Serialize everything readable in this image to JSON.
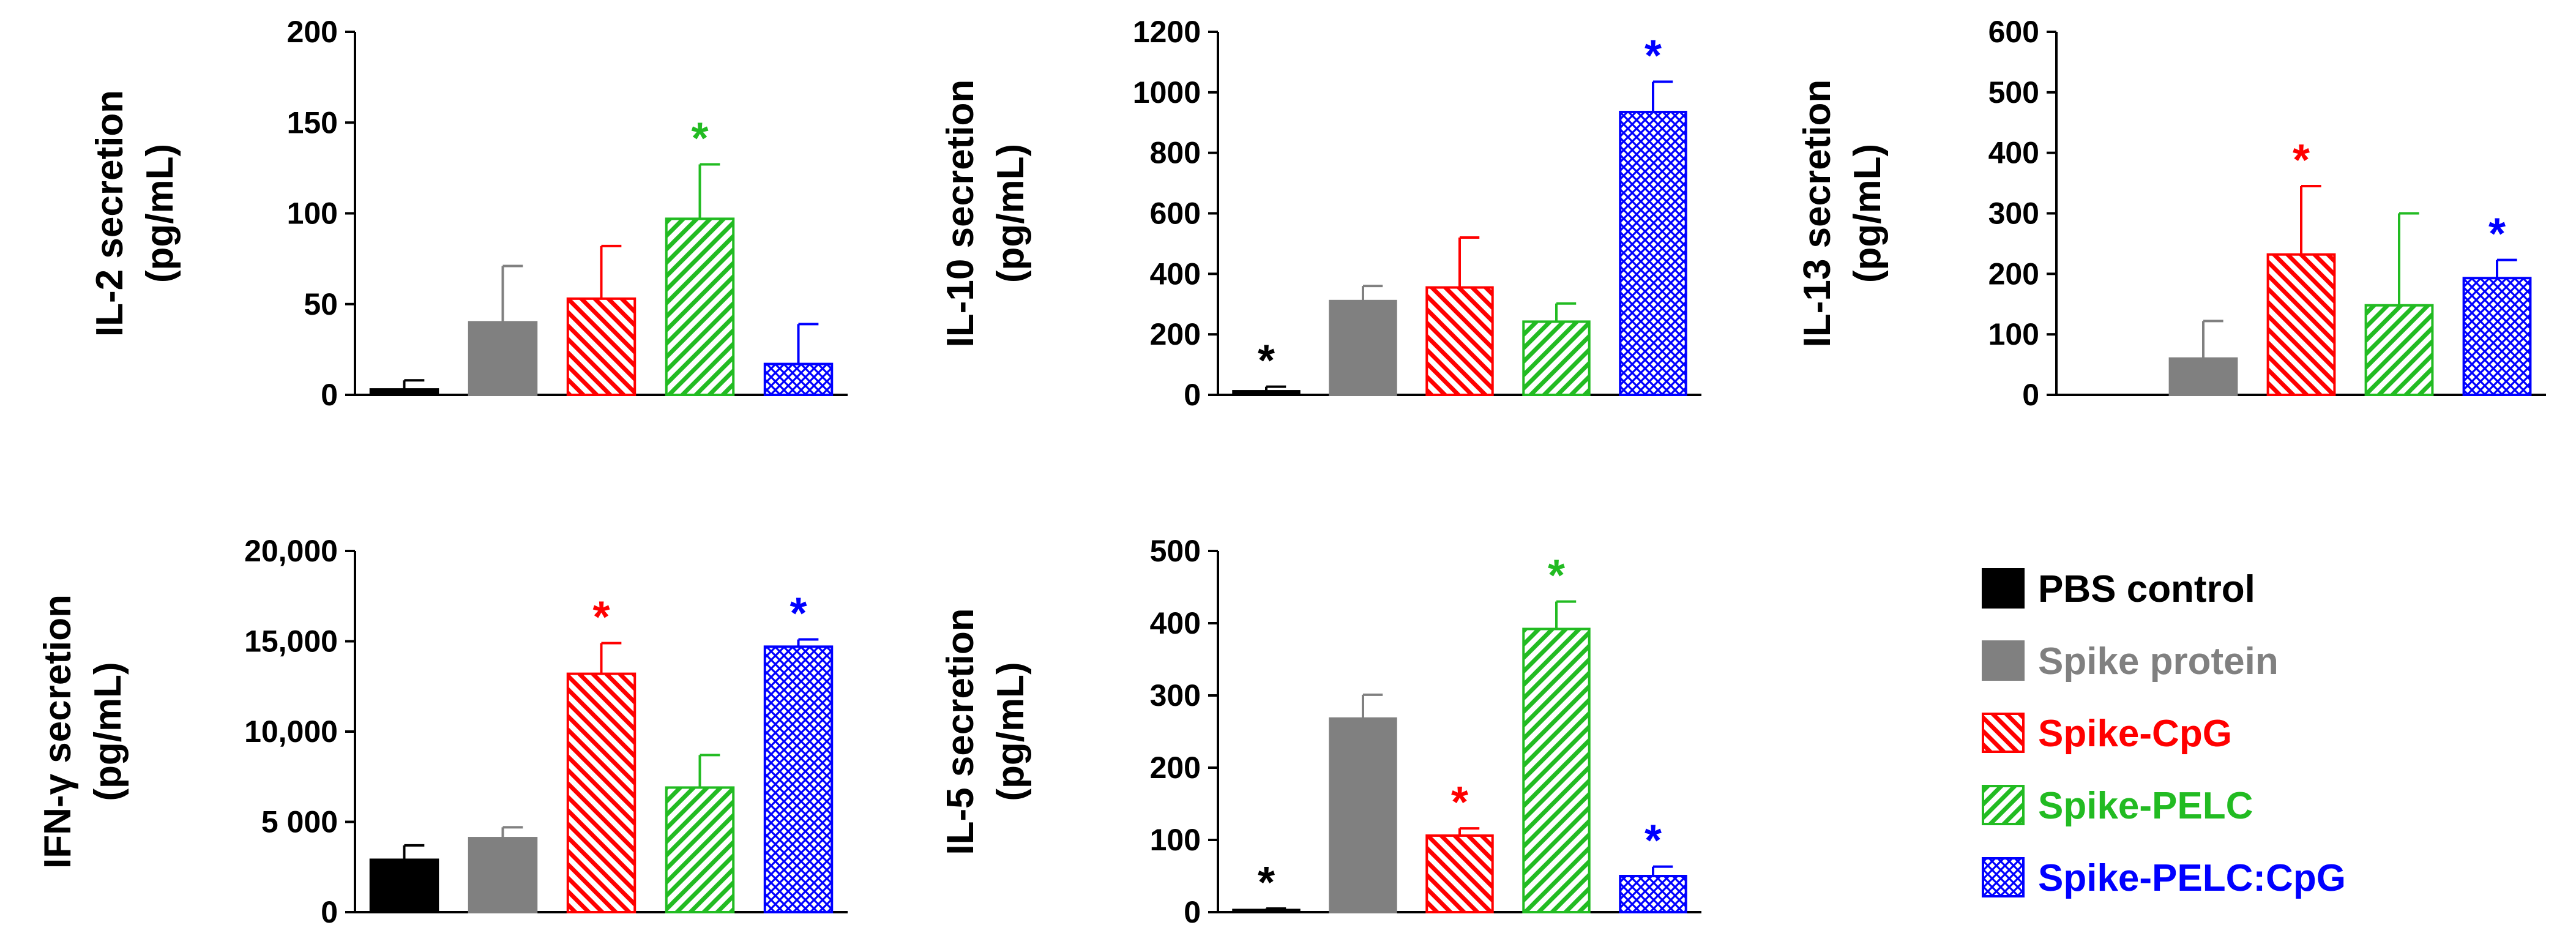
{
  "groups": [
    {
      "name": "PBS control",
      "color": "#000000",
      "pattern": "solid"
    },
    {
      "name": "Spike protein",
      "color": "#808080",
      "pattern": "solid"
    },
    {
      "name": "Spike-CpG",
      "color": "#ff0000",
      "pattern": "hatch-back"
    },
    {
      "name": "Spike-PELC",
      "color": "#22bb22",
      "pattern": "hatch-fwd"
    },
    {
      "name": "Spike-PELC:CpG",
      "color": "#0000ff",
      "pattern": "crosshatch"
    }
  ],
  "chart_data": [
    {
      "type": "bar",
      "title": "IL-2",
      "ylabel_line1": "IL-2 secretion",
      "ylabel_line2": "(pg/mL)",
      "categories": [
        "PBS control",
        "Spike protein",
        "Spike-CpG",
        "Spike-PELC",
        "Spike-PELC:CpG"
      ],
      "values": [
        3,
        40,
        53,
        97,
        17
      ],
      "errors": [
        5,
        31,
        29,
        30,
        22
      ],
      "significant": [
        false,
        false,
        false,
        true,
        false
      ],
      "marker": "*",
      "ylim": [
        0,
        200
      ],
      "ticks": [
        0,
        50,
        100,
        150,
        200
      ],
      "tick_labels": [
        "0",
        "50",
        "100",
        "150",
        "200"
      ]
    },
    {
      "type": "bar",
      "title": "IL-10",
      "ylabel_line1": "IL-10 secretion",
      "ylabel_line2": "(pg/mL)",
      "categories": [
        "PBS control",
        "Spike protein",
        "Spike-CpG",
        "Spike-PELC",
        "Spike-PELC:CpG"
      ],
      "values": [
        12,
        310,
        355,
        242,
        935
      ],
      "errors": [
        15,
        50,
        165,
        60,
        100
      ],
      "significant": [
        true,
        false,
        false,
        false,
        true
      ],
      "marker": "*",
      "ylim": [
        0,
        1200
      ],
      "ticks": [
        0,
        200,
        400,
        600,
        800,
        1000,
        1200
      ],
      "tick_labels": [
        "0",
        "200",
        "400",
        "600",
        "800",
        "1000",
        "1200"
      ]
    },
    {
      "type": "bar",
      "title": "IL-13",
      "ylabel_line1": "IL-13 secretion",
      "ylabel_line2": "(pg/mL)",
      "categories": [
        "PBS control",
        "Spike protein",
        "Spike-CpG",
        "Spike-PELC",
        "Spike-PELC:CpG"
      ],
      "values": [
        0,
        60,
        232,
        148,
        193
      ],
      "errors": [
        0,
        62,
        113,
        152,
        30
      ],
      "significant": [
        false,
        false,
        true,
        false,
        true
      ],
      "marker": "*",
      "ylim": [
        0,
        600
      ],
      "ticks": [
        0,
        100,
        200,
        300,
        400,
        500,
        600
      ],
      "tick_labels": [
        "0",
        "100",
        "200",
        "300",
        "400",
        "500",
        "600"
      ]
    },
    {
      "type": "bar",
      "title": "IFN-γ",
      "ylabel_line1": "IFN-γ secretion",
      "ylabel_line2": "(pg/mL)",
      "categories": [
        "PBS control",
        "Spike protein",
        "Spike-CpG",
        "Spike-PELC",
        "Spike-PELC:CpG"
      ],
      "values": [
        2900,
        4100,
        13200,
        6900,
        14700
      ],
      "errors": [
        800,
        600,
        1700,
        1800,
        400
      ],
      "significant": [
        false,
        false,
        true,
        false,
        true
      ],
      "marker": "*",
      "ylim": [
        0,
        20000
      ],
      "ticks": [
        0,
        5000,
        10000,
        15000,
        20000
      ],
      "tick_labels": [
        "0",
        "5 000",
        "10,000",
        "15,000",
        "20,000"
      ]
    },
    {
      "type": "bar",
      "title": "IL-5",
      "ylabel_line1": "IL-5 secretion",
      "ylabel_line2": "(pg/mL)",
      "categories": [
        "PBS control",
        "Spike protein",
        "Spike-CpG",
        "Spike-PELC",
        "Spike-PELC:CpG"
      ],
      "values": [
        3,
        268,
        106,
        392,
        50
      ],
      "errors": [
        2,
        33,
        10,
        38,
        13
      ],
      "significant": [
        true,
        false,
        true,
        true,
        true
      ],
      "marker": "*",
      "ylim": [
        0,
        500
      ],
      "ticks": [
        0,
        100,
        200,
        300,
        400,
        500
      ],
      "tick_labels": [
        "0",
        "100",
        "200",
        "300",
        "400",
        "500"
      ]
    }
  ]
}
